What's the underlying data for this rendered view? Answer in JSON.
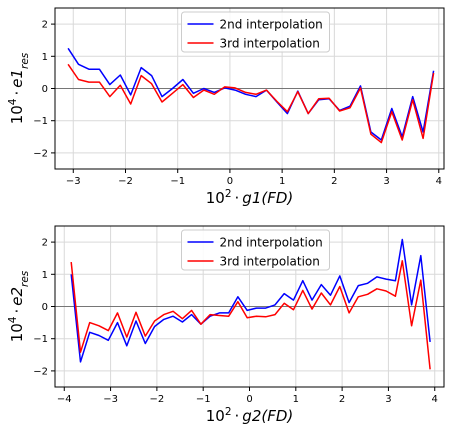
{
  "figure": {
    "background": "#ffffff"
  },
  "chart_data": [
    {
      "type": "line",
      "xlabel": "10² · g1(FD)",
      "ylabel": "10⁴ · e1_res",
      "xlim": [
        -3.35,
        4.1
      ],
      "ylim": [
        -2.5,
        2.5
      ],
      "xticks": [
        -3,
        -2,
        -1,
        0,
        1,
        2,
        3,
        4
      ],
      "yticks": [
        -2,
        -1,
        0,
        1,
        2
      ],
      "grid": true,
      "zero_line": true,
      "legend_position": "top-center",
      "series": [
        {
          "name": "2nd interpolation",
          "color": "#0000ff",
          "x": [
            -3.1,
            -2.9,
            -2.7,
            -2.5,
            -2.3,
            -2.1,
            -1.9,
            -1.7,
            -1.5,
            -1.3,
            -1.1,
            -0.9,
            -0.7,
            -0.5,
            -0.3,
            -0.1,
            0.1,
            0.3,
            0.5,
            0.7,
            0.9,
            1.1,
            1.3,
            1.5,
            1.7,
            1.9,
            2.1,
            2.3,
            2.5,
            2.7,
            2.9,
            3.1,
            3.3,
            3.5,
            3.7,
            3.9
          ],
          "y": [
            1.25,
            0.75,
            0.6,
            0.6,
            0.12,
            0.42,
            -0.2,
            0.65,
            0.4,
            -0.25,
            0.0,
            0.28,
            -0.15,
            0.0,
            -0.12,
            0.02,
            -0.05,
            -0.18,
            -0.25,
            -0.05,
            -0.42,
            -0.78,
            -0.08,
            -0.78,
            -0.35,
            -0.32,
            -0.68,
            -0.55,
            0.08,
            -1.35,
            -1.6,
            -0.62,
            -1.5,
            -0.25,
            -1.35,
            0.55
          ]
        },
        {
          "name": "3rd interpolation",
          "color": "#ff0000",
          "x": [
            -3.1,
            -2.9,
            -2.7,
            -2.5,
            -2.3,
            -2.1,
            -1.9,
            -1.7,
            -1.5,
            -1.3,
            -1.1,
            -0.9,
            -0.7,
            -0.5,
            -0.3,
            -0.1,
            0.1,
            0.3,
            0.5,
            0.7,
            0.9,
            1.1,
            1.3,
            1.5,
            1.7,
            1.9,
            2.1,
            2.3,
            2.5,
            2.7,
            2.9,
            3.1,
            3.3,
            3.5,
            3.7,
            3.9
          ],
          "y": [
            0.75,
            0.28,
            0.2,
            0.2,
            -0.25,
            0.1,
            -0.48,
            0.4,
            0.15,
            -0.42,
            -0.15,
            0.12,
            -0.28,
            -0.05,
            -0.18,
            0.05,
            0.02,
            -0.12,
            -0.18,
            -0.05,
            -0.4,
            -0.72,
            -0.1,
            -0.78,
            -0.32,
            -0.3,
            -0.7,
            -0.6,
            0.02,
            -1.42,
            -1.68,
            -0.72,
            -1.6,
            -0.35,
            -1.55,
            0.48
          ]
        }
      ]
    },
    {
      "type": "line",
      "xlabel": "10² · g2(FD)",
      "ylabel": "10⁴ · e2_res",
      "xlim": [
        -4.2,
        4.2
      ],
      "ylim": [
        -2.5,
        2.5
      ],
      "xticks": [
        -4,
        -3,
        -2,
        -1,
        0,
        1,
        2,
        3,
        4
      ],
      "yticks": [
        -2,
        -1,
        0,
        1,
        2
      ],
      "grid": true,
      "zero_line": true,
      "legend_position": "top-center",
      "series": [
        {
          "name": "2nd interpolation",
          "color": "#0000ff",
          "x": [
            -3.85,
            -3.65,
            -3.45,
            -3.25,
            -3.05,
            -2.85,
            -2.65,
            -2.45,
            -2.25,
            -2.05,
            -1.85,
            -1.65,
            -1.45,
            -1.25,
            -1.05,
            -0.85,
            -0.65,
            -0.45,
            -0.25,
            -0.05,
            0.15,
            0.35,
            0.55,
            0.75,
            0.95,
            1.15,
            1.35,
            1.55,
            1.75,
            1.95,
            2.15,
            2.35,
            2.55,
            2.75,
            2.95,
            3.15,
            3.3,
            3.5,
            3.7,
            3.9
          ],
          "y": [
            1.0,
            -1.72,
            -0.8,
            -0.9,
            -1.05,
            -0.5,
            -1.22,
            -0.45,
            -1.15,
            -0.62,
            -0.4,
            -0.3,
            -0.48,
            -0.25,
            -0.55,
            -0.3,
            -0.2,
            -0.2,
            0.3,
            -0.12,
            -0.05,
            -0.05,
            0.05,
            0.4,
            0.2,
            0.8,
            0.2,
            0.68,
            0.35,
            0.95,
            0.12,
            0.65,
            0.72,
            0.92,
            0.85,
            0.8,
            2.08,
            0.05,
            1.58,
            -1.1
          ]
        },
        {
          "name": "3rd interpolation",
          "color": "#ff0000",
          "x": [
            -3.85,
            -3.65,
            -3.45,
            -3.25,
            -3.05,
            -2.85,
            -2.65,
            -2.45,
            -2.25,
            -2.05,
            -1.85,
            -1.65,
            -1.45,
            -1.25,
            -1.05,
            -0.85,
            -0.65,
            -0.45,
            -0.25,
            -0.05,
            0.15,
            0.35,
            0.55,
            0.75,
            0.95,
            1.15,
            1.35,
            1.55,
            1.75,
            1.95,
            2.15,
            2.35,
            2.55,
            2.75,
            2.95,
            3.15,
            3.3,
            3.5,
            3.7,
            3.9
          ],
          "y": [
            1.38,
            -1.42,
            -0.5,
            -0.6,
            -0.75,
            -0.2,
            -0.95,
            -0.18,
            -0.92,
            -0.45,
            -0.25,
            -0.15,
            -0.38,
            -0.12,
            -0.55,
            -0.25,
            -0.28,
            -0.3,
            0.15,
            -0.35,
            -0.3,
            -0.32,
            -0.25,
            0.1,
            -0.1,
            0.5,
            -0.08,
            0.42,
            0.05,
            0.62,
            -0.2,
            0.3,
            0.38,
            0.55,
            0.48,
            0.32,
            1.42,
            -0.6,
            0.82,
            -1.95
          ]
        }
      ]
    }
  ]
}
